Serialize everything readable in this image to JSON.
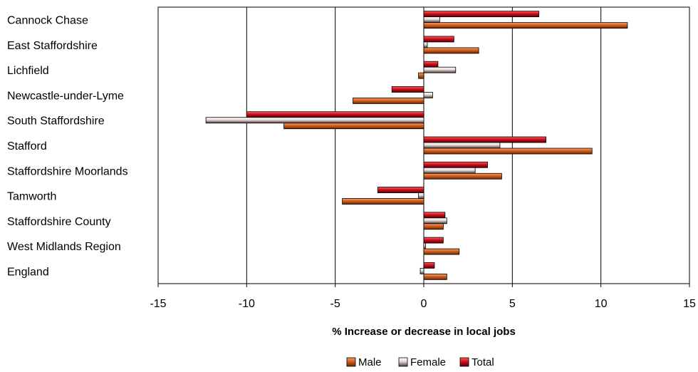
{
  "chart_data": {
    "type": "bar",
    "orientation": "horizontal",
    "categories": [
      "Cannock Chase",
      "East Staffordshire",
      "Lichfield",
      "Newcastle-under-Lyme",
      "South Staffordshire",
      "Stafford",
      "Staffordshire Moorlands",
      "Tamworth",
      "Staffordshire County",
      "West Midlands Region",
      "England"
    ],
    "series": [
      {
        "name": "Male",
        "color": "#d2601a",
        "values": [
          11.5,
          3.1,
          -0.3,
          -4.0,
          -7.9,
          9.5,
          4.4,
          -4.6,
          1.1,
          2.0,
          1.3
        ]
      },
      {
        "name": "Female",
        "color": "#bcaaa8",
        "values": [
          0.9,
          0.2,
          1.8,
          0.5,
          -12.3,
          4.3,
          2.9,
          -0.3,
          1.3,
          0.1,
          -0.2
        ]
      },
      {
        "name": "Total",
        "color": "#d0101c",
        "values": [
          6.5,
          1.7,
          0.8,
          -1.8,
          -10.0,
          6.9,
          3.6,
          -2.6,
          1.2,
          1.1,
          0.6
        ]
      }
    ],
    "xlabel": "% Increase or decrease in local jobs",
    "xlim": [
      -15,
      15
    ],
    "xticks": [
      "-15",
      "-10",
      "-5",
      "0",
      "5",
      "10",
      "15"
    ],
    "grid": "vertical",
    "legend": "bottom"
  }
}
